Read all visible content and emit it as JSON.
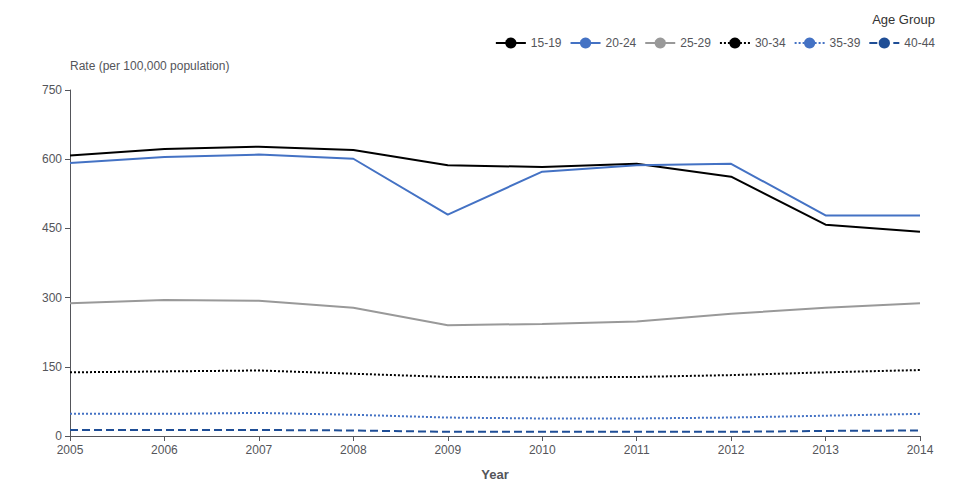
{
  "chart_data": {
    "type": "line",
    "xlabel": "Year",
    "ylabel": "Rate (per 100,000 population)",
    "legend_title": "Age Group",
    "x": [
      2005,
      2006,
      2007,
      2008,
      2009,
      2010,
      2011,
      2012,
      2013,
      2014
    ],
    "series": [
      {
        "name": "15-19",
        "color": "#000000",
        "line_style": "solid",
        "values": [
          608,
          622,
          627,
          620,
          587,
          583,
          590,
          562,
          458,
          443
        ]
      },
      {
        "name": "20-24",
        "color": "#4472C4",
        "line_style": "solid",
        "values": [
          592,
          605,
          610,
          601,
          480,
          573,
          587,
          590,
          478,
          478
        ]
      },
      {
        "name": "25-29",
        "color": "#999999",
        "line_style": "solid",
        "values": [
          288,
          295,
          293,
          278,
          240,
          243,
          248,
          265,
          278,
          288
        ]
      },
      {
        "name": "30-34",
        "color": "#000000",
        "line_style": "dotted",
        "values": [
          138,
          140,
          142,
          135,
          128,
          127,
          128,
          132,
          138,
          143
        ]
      },
      {
        "name": "35-39",
        "color": "#4472C4",
        "line_style": "dotted",
        "values": [
          48,
          48,
          50,
          46,
          40,
          38,
          38,
          40,
          44,
          48
        ]
      },
      {
        "name": "40-44",
        "color": "#1f4e96",
        "line_style": "dashed",
        "values": [
          13,
          13,
          13,
          12,
          9,
          9,
          9,
          9,
          11,
          12
        ]
      }
    ],
    "xlim": [
      2005,
      2014
    ],
    "xticks": [
      2005,
      2006,
      2007,
      2008,
      2009,
      2010,
      2011,
      2012,
      2013,
      2014
    ],
    "ylim": [
      0,
      750
    ],
    "yticks": [
      0,
      150,
      300,
      450,
      600,
      750
    ],
    "grid": false,
    "legend": "upper right"
  }
}
